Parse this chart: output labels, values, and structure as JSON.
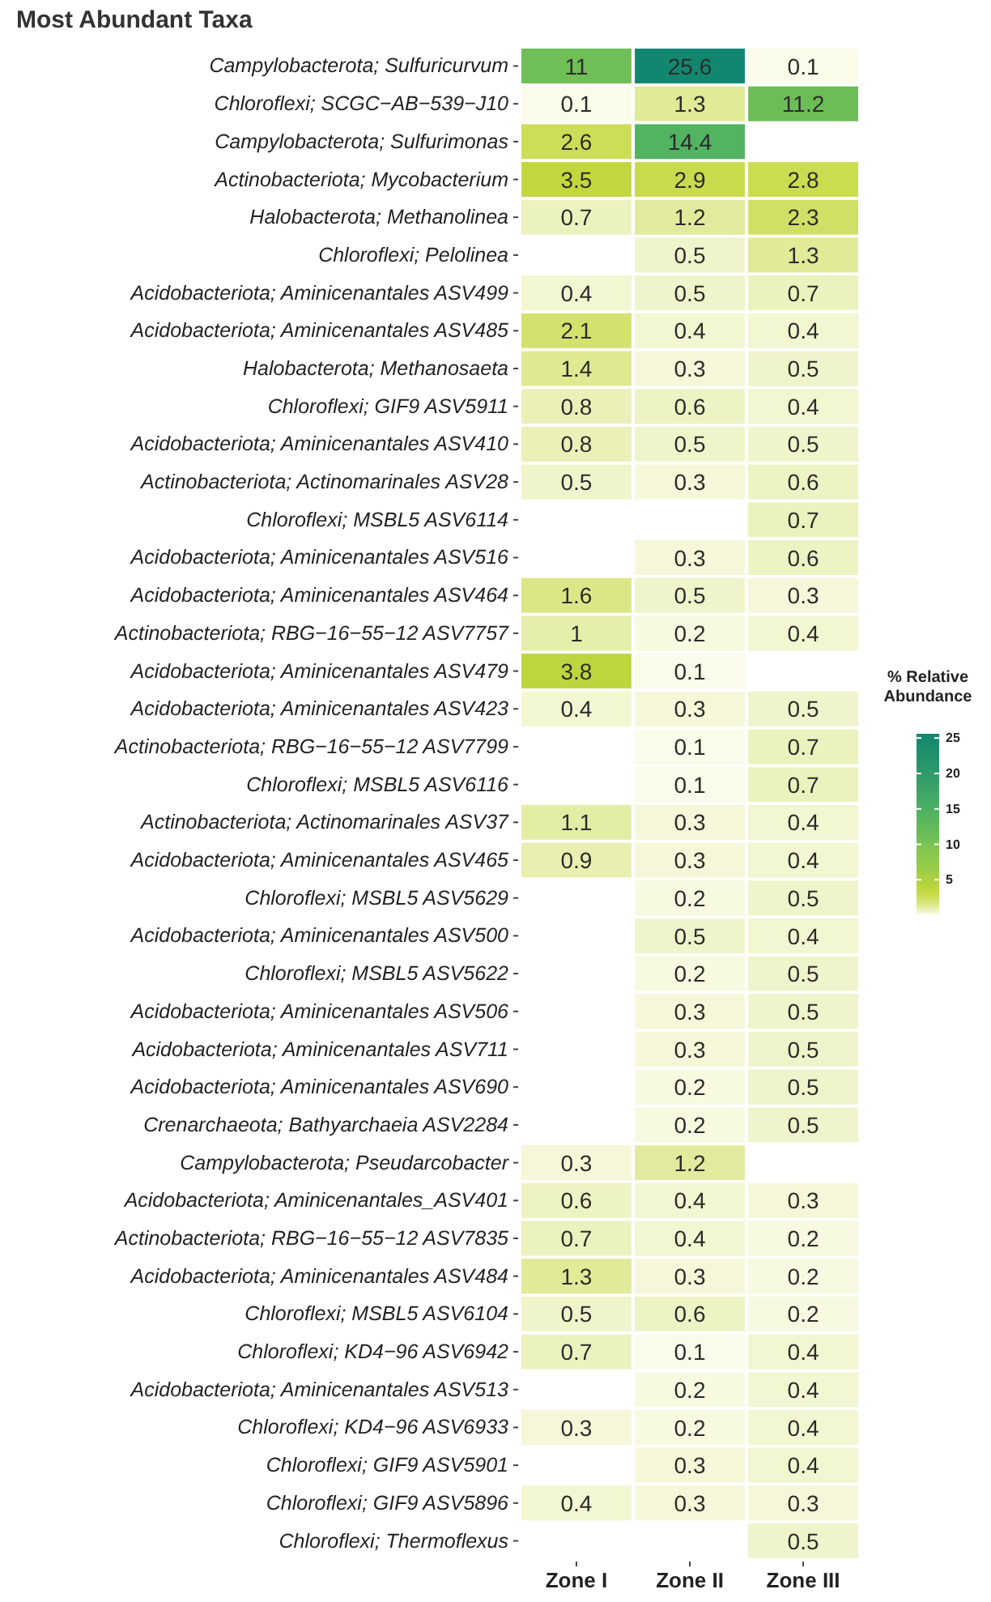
{
  "chart_data": {
    "type": "heatmap",
    "title": "Most Abundant Taxa",
    "clabel": "% Relative Abundance",
    "categories": [
      "Zone I",
      "Zone II",
      "Zone III"
    ],
    "y_categories": [
      "Campylobacterota; Sulfuricurvum",
      "Chloroflexi; SCGC−AB−539−J10",
      "Campylobacterota; Sulfurimonas",
      "Actinobacteriota; Mycobacterium",
      "Halobacterota; Methanolinea",
      "Chloroflexi; Pelolinea",
      "Acidobacteriota; Aminicenantales ASV499",
      "Acidobacteriota; Aminicenantales ASV485",
      "Halobacterota; Methanosaeta",
      "Chloroflexi; GIF9 ASV5911",
      "Acidobacteriota; Aminicenantales ASV410",
      "Actinobacteriota; Actinomarinales ASV28",
      "Chloroflexi; MSBL5 ASV6114",
      "Acidobacteriota; Aminicenantales ASV516",
      "Acidobacteriota; Aminicenantales ASV464",
      "Actinobacteriota; RBG−16−55−12 ASV7757",
      "Acidobacteriota; Aminicenantales ASV479",
      "Acidobacteriota; Aminicenantales ASV423",
      "Actinobacteriota; RBG−16−55−12 ASV7799",
      "Chloroflexi; MSBL5 ASV6116",
      "Actinobacteriota; Actinomarinales ASV37",
      "Acidobacteriota; Aminicenantales ASV465",
      "Chloroflexi; MSBL5 ASV5629",
      "Acidobacteriota; Aminicenantales ASV500",
      "Chloroflexi; MSBL5 ASV5622",
      "Acidobacteriota; Aminicenantales ASV506",
      "Acidobacteriota; Aminicenantales ASV711",
      "Acidobacteriota; Aminicenantales ASV690",
      "Crenarchaeota; Bathyarchaeia ASV2284",
      "Campylobacterota; Pseudarcobacter",
      "Acidobacteriota; Aminicenantales_ASV401",
      "Actinobacteriota; RBG−16−55−12 ASV7835",
      "Acidobacteriota; Aminicenantales ASV484",
      "Chloroflexi; MSBL5 ASV6104",
      "Chloroflexi; KD4−96 ASV6942",
      "Acidobacteriota; Aminicenantales ASV513",
      "Chloroflexi; KD4−96 ASV6933",
      "Chloroflexi; GIF9 ASV5901",
      "Chloroflexi; GIF9 ASV5896",
      "Chloroflexi; Thermoflexus"
    ],
    "cells": [
      [
        11,
        25.6,
        0.1
      ],
      [
        0.1,
        1.3,
        11.2
      ],
      [
        2.6,
        14.4,
        null
      ],
      [
        3.5,
        2.9,
        2.8
      ],
      [
        0.7,
        1.2,
        2.3
      ],
      [
        null,
        0.5,
        1.3
      ],
      [
        0.4,
        0.5,
        0.7
      ],
      [
        2.1,
        0.4,
        0.4
      ],
      [
        1.4,
        0.3,
        0.5
      ],
      [
        0.8,
        0.6,
        0.4
      ],
      [
        0.8,
        0.5,
        0.5
      ],
      [
        0.5,
        0.3,
        0.6
      ],
      [
        null,
        null,
        0.7
      ],
      [
        null,
        0.3,
        0.6
      ],
      [
        1.6,
        0.5,
        0.3
      ],
      [
        1,
        0.2,
        0.4
      ],
      [
        3.8,
        0.1,
        null
      ],
      [
        0.4,
        0.3,
        0.5
      ],
      [
        null,
        0.1,
        0.7
      ],
      [
        null,
        0.1,
        0.7
      ],
      [
        1.1,
        0.3,
        0.4
      ],
      [
        0.9,
        0.3,
        0.4
      ],
      [
        null,
        0.2,
        0.5
      ],
      [
        null,
        0.5,
        0.4
      ],
      [
        null,
        0.2,
        0.5
      ],
      [
        null,
        0.3,
        0.5
      ],
      [
        null,
        0.3,
        0.5
      ],
      [
        null,
        0.2,
        0.5
      ],
      [
        null,
        0.2,
        0.5
      ],
      [
        0.3,
        1.2,
        null
      ],
      [
        0.6,
        0.4,
        0.3
      ],
      [
        0.7,
        0.4,
        0.2
      ],
      [
        1.3,
        0.3,
        0.2
      ],
      [
        0.5,
        0.6,
        0.2
      ],
      [
        0.7,
        0.1,
        0.4
      ],
      [
        null,
        0.2,
        0.4
      ],
      [
        0.3,
        0.2,
        0.4
      ],
      [
        null,
        0.3,
        0.4
      ],
      [
        0.4,
        0.3,
        0.3
      ],
      [
        null,
        null,
        0.5
      ]
    ],
    "data_labels": true,
    "clim": [
      0,
      25.6
    ],
    "cticks": [
      5,
      10,
      15,
      20,
      25
    ]
  }
}
